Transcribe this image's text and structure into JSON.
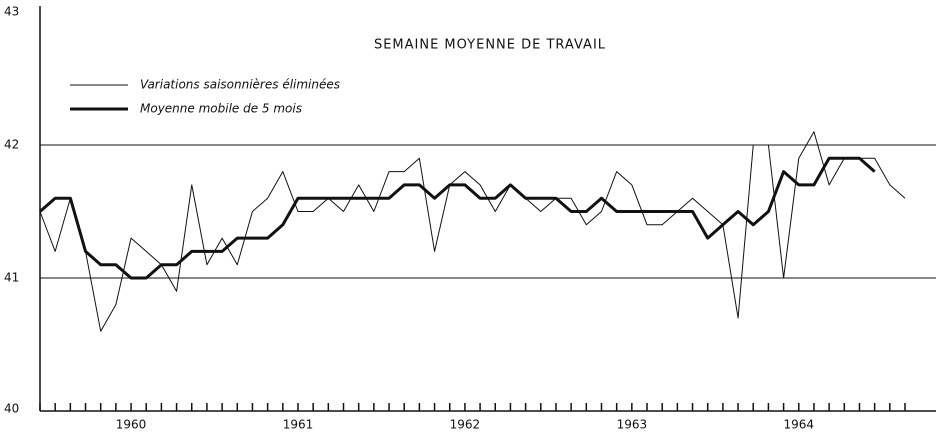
{
  "chart_data": {
    "type": "line",
    "title": "SEMAINE MOYENNE DE TRAVAIL",
    "categories": [
      null,
      null,
      null,
      null,
      null,
      null,
      "1960",
      null,
      null,
      null,
      null,
      null,
      null,
      null,
      null,
      null,
      null,
      "1961",
      null,
      null,
      null,
      null,
      null,
      null,
      null,
      null,
      null,
      null,
      "1962",
      null,
      null,
      null,
      null,
      null,
      null,
      null,
      null,
      null,
      null,
      "1963",
      null,
      null,
      null,
      null,
      null,
      null,
      null,
      null,
      null,
      null,
      "1964",
      null,
      null,
      null,
      null,
      null,
      null,
      null
    ],
    "series": [
      {
        "name": "Variations saisonnières éliminées",
        "color": "#111111",
        "width": 1,
        "values": [
          41.5,
          41.2,
          41.6,
          41.2,
          40.6,
          40.8,
          41.3,
          41.2,
          41.1,
          40.9,
          41.7,
          41.1,
          41.3,
          41.1,
          41.5,
          41.6,
          41.8,
          41.5,
          41.5,
          41.6,
          41.5,
          41.7,
          41.5,
          41.8,
          41.8,
          41.9,
          41.2,
          41.7,
          41.8,
          41.7,
          41.5,
          41.7,
          41.6,
          41.5,
          41.6,
          41.6,
          41.4,
          41.5,
          41.8,
          41.7,
          41.4,
          41.4,
          41.5,
          41.6,
          41.5,
          41.4,
          40.7,
          42.0,
          42.0,
          41.0,
          41.9,
          42.1,
          41.7,
          41.9,
          41.9,
          41.9,
          41.7,
          41.6
        ]
      },
      {
        "name": "Moyenne mobile de 5 mois",
        "color": "#111111",
        "width": 3,
        "values": [
          41.5,
          41.6,
          41.6,
          41.2,
          41.1,
          41.1,
          41.0,
          41.0,
          41.1,
          41.1,
          41.2,
          41.2,
          41.2,
          41.3,
          41.3,
          41.3,
          41.4,
          41.6,
          41.6,
          41.6,
          41.6,
          41.6,
          41.6,
          41.6,
          41.7,
          41.7,
          41.6,
          41.7,
          41.7,
          41.6,
          41.6,
          41.7,
          41.6,
          41.6,
          41.6,
          41.5,
          41.5,
          41.6,
          41.5,
          41.5,
          41.5,
          41.5,
          41.5,
          41.5,
          41.3,
          41.4,
          41.5,
          41.4,
          41.5,
          41.8,
          41.7,
          41.7,
          41.9,
          41.9,
          41.9,
          41.8,
          null,
          null
        ]
      }
    ],
    "ylim": [
      40,
      43
    ],
    "yticks": [
      40,
      41,
      42,
      43
    ],
    "grid": true
  }
}
